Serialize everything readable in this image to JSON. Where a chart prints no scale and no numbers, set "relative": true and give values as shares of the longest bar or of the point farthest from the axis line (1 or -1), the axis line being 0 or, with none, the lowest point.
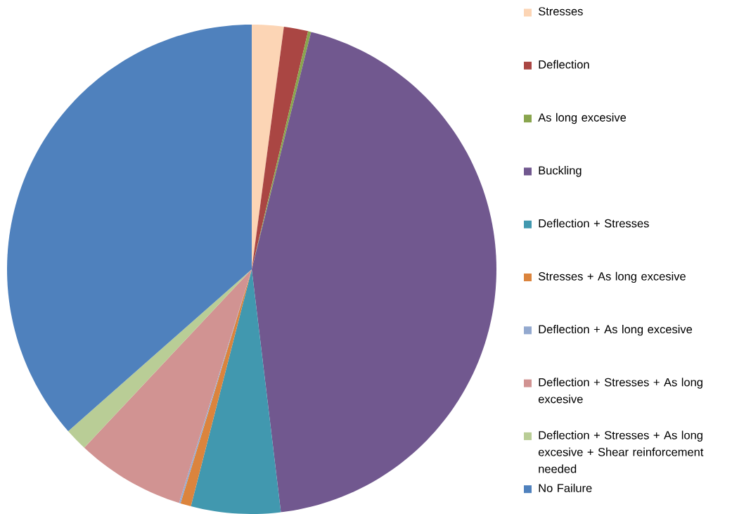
{
  "chart_data": {
    "type": "pie",
    "relative": true,
    "legend": "right",
    "categories": [
      "Stresses",
      "Deflection",
      "As long excesive",
      "Buckling",
      "Deflection + Stresses",
      "Stresses + As long excesive",
      "Deflection + As long excesive",
      "Deflection + Stresses + As long excesive",
      "Deflection + Stresses + As long excesive + Shear reinforcement needed",
      "No Failure"
    ],
    "values": [
      2.1,
      1.6,
      0.2,
      44.2,
      5.9,
      0.7,
      0.1,
      7.2,
      1.5,
      36.5
    ],
    "colors": [
      "#fcd5b5",
      "#aa4643",
      "#89a54e",
      "#71588f",
      "#4198af",
      "#db843d",
      "#93a9cf",
      "#d19392",
      "#b9cd96",
      "#4f81bd"
    ]
  }
}
